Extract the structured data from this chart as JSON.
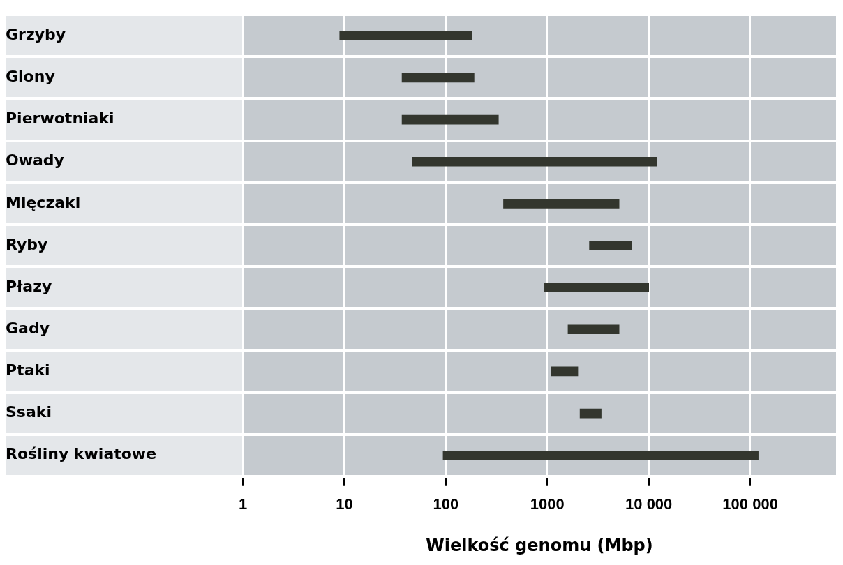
{
  "chart_data": {
    "type": "bar",
    "orientation": "horizontal",
    "xlabel": "Wielkość genomu (Mbp)",
    "categories": [
      "Grzyby",
      "Glony",
      "Pierwotniaki",
      "Owady",
      "Mięczaki",
      "Ryby",
      "Płazy",
      "Gady",
      "Ptaki",
      "Ssaki",
      "Rośliny kwiatowe"
    ],
    "base": [
      9,
      37,
      37,
      47,
      370,
      2600,
      940,
      1600,
      1100,
      2100,
      94
    ],
    "values": [
      171,
      153,
      293,
      11953,
      4730,
      4200,
      9060,
      3500,
      900,
      1300,
      119906
    ],
    "color": "#33362e",
    "log": "x",
    "xlim": [
      1,
      700000
    ],
    "xticks": [
      1,
      10,
      100,
      1000,
      {
        "value": 10000,
        "label": "10 000"
      },
      {
        "value": 100000,
        "label": "100 000"
      }
    ],
    "grid": true,
    "legend": false
  }
}
